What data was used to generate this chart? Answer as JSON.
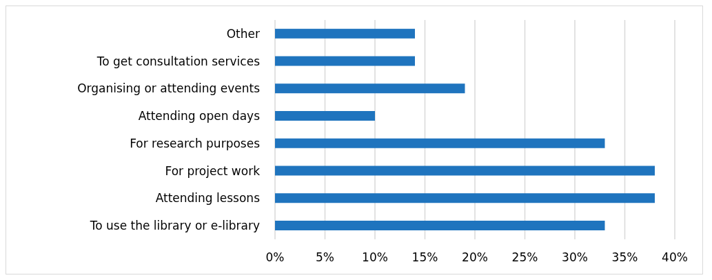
{
  "chart_data": {
    "type": "bar",
    "orientation": "horizontal",
    "categories": [
      "Other",
      "To get consultation services",
      "Organising or attending events",
      "Attending open days",
      "For research purposes",
      "For project work",
      "Attending lessons",
      "To use the library or e-library"
    ],
    "values": [
      14,
      14,
      19,
      10,
      33,
      38,
      38,
      33
    ],
    "color": "#1f74be",
    "xlim": [
      0,
      40
    ],
    "xticks": [
      {
        "value": 0,
        "label": "0%"
      },
      {
        "value": 5,
        "label": "5%"
      },
      {
        "value": 10,
        "label": "10%"
      },
      {
        "value": 15,
        "label": "15%"
      },
      {
        "value": 20,
        "label": "20%"
      },
      {
        "value": 25,
        "label": "25%"
      },
      {
        "value": 30,
        "label": "30%"
      },
      {
        "value": 35,
        "label": "35%"
      },
      {
        "value": 40,
        "label": "40%"
      }
    ],
    "grid": "x",
    "legend": false
  }
}
